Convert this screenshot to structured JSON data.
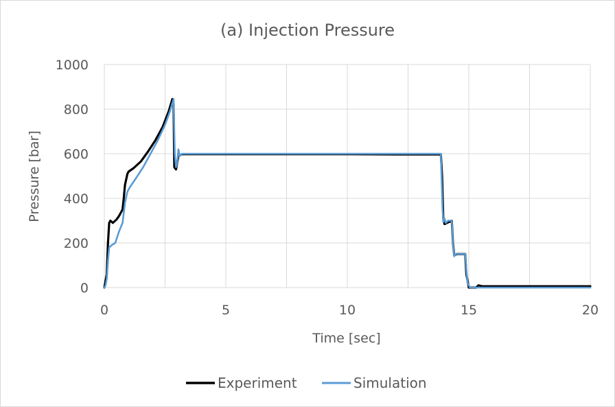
{
  "chart_data": {
    "type": "line",
    "title": "(a) Injection Pressure",
    "xlabel": "Time [sec]",
    "ylabel": "Pressure [bar]",
    "xlim": [
      0,
      20
    ],
    "ylim": [
      0,
      1000
    ],
    "x_ticks": [
      "0",
      "5",
      "10",
      "15",
      "20"
    ],
    "y_ticks": [
      "0",
      "200",
      "400",
      "600",
      "800",
      "1000"
    ],
    "grid": true,
    "legend_position": "bottom",
    "series": [
      {
        "name": "Experiment",
        "color": "#000000",
        "points": [
          [
            0,
            0
          ],
          [
            0.1,
            60
          ],
          [
            0.15,
            200
          ],
          [
            0.2,
            290
          ],
          [
            0.25,
            300
          ],
          [
            0.35,
            290
          ],
          [
            0.5,
            305
          ],
          [
            0.6,
            320
          ],
          [
            0.75,
            350
          ],
          [
            0.8,
            400
          ],
          [
            0.85,
            460
          ],
          [
            0.95,
            510
          ],
          [
            1.0,
            520
          ],
          [
            1.2,
            535
          ],
          [
            1.5,
            565
          ],
          [
            1.8,
            610
          ],
          [
            2.1,
            660
          ],
          [
            2.4,
            720
          ],
          [
            2.65,
            790
          ],
          [
            2.8,
            845
          ],
          [
            2.85,
            820
          ],
          [
            2.88,
            540
          ],
          [
            2.95,
            530
          ],
          [
            3.05,
            590
          ],
          [
            3.2,
            598
          ],
          [
            5,
            598
          ],
          [
            8,
            598
          ],
          [
            10,
            598
          ],
          [
            12,
            597
          ],
          [
            13.85,
            597
          ],
          [
            13.9,
            500
          ],
          [
            13.95,
            310
          ],
          [
            14.0,
            285
          ],
          [
            14.2,
            295
          ],
          [
            14.3,
            300
          ],
          [
            14.35,
            200
          ],
          [
            14.4,
            145
          ],
          [
            14.5,
            150
          ],
          [
            14.85,
            150
          ],
          [
            14.9,
            60
          ],
          [
            15.0,
            0
          ],
          [
            15.3,
            0
          ],
          [
            15.4,
            10
          ],
          [
            15.55,
            6
          ],
          [
            17,
            6
          ],
          [
            20,
            6
          ]
        ]
      },
      {
        "name": "Simulation",
        "color": "#5b9bd5",
        "points": [
          [
            0,
            0
          ],
          [
            0.05,
            10
          ],
          [
            0.1,
            40
          ],
          [
            0.15,
            120
          ],
          [
            0.2,
            180
          ],
          [
            0.3,
            190
          ],
          [
            0.45,
            200
          ],
          [
            0.6,
            250
          ],
          [
            0.75,
            290
          ],
          [
            0.85,
            380
          ],
          [
            0.95,
            430
          ],
          [
            1.05,
            450
          ],
          [
            1.3,
            490
          ],
          [
            1.6,
            540
          ],
          [
            1.9,
            600
          ],
          [
            2.2,
            660
          ],
          [
            2.5,
            730
          ],
          [
            2.7,
            790
          ],
          [
            2.85,
            845
          ],
          [
            2.9,
            600
          ],
          [
            2.95,
            540
          ],
          [
            3.0,
            560
          ],
          [
            3.05,
            620
          ],
          [
            3.1,
            590
          ],
          [
            3.2,
            600
          ],
          [
            5,
            600
          ],
          [
            8,
            600
          ],
          [
            10,
            600
          ],
          [
            12,
            600
          ],
          [
            13.85,
            600
          ],
          [
            13.92,
            350
          ],
          [
            13.95,
            295
          ],
          [
            14.0,
            310
          ],
          [
            14.05,
            290
          ],
          [
            14.15,
            300
          ],
          [
            14.3,
            300
          ],
          [
            14.35,
            200
          ],
          [
            14.4,
            140
          ],
          [
            14.45,
            150
          ],
          [
            14.85,
            150
          ],
          [
            14.9,
            80
          ],
          [
            14.95,
            20
          ],
          [
            15.05,
            0
          ],
          [
            15.15,
            0
          ],
          [
            16,
            0
          ],
          [
            20,
            0
          ]
        ]
      }
    ]
  }
}
